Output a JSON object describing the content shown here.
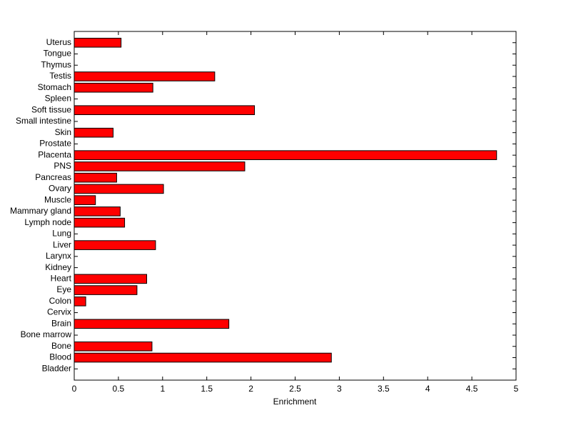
{
  "chart_data": {
    "type": "barh",
    "xlabel": "Enrichment",
    "categories": [
      "Bladder",
      "Blood",
      "Bone",
      "Bone marrow",
      "Brain",
      "Cervix",
      "Colon",
      "Eye",
      "Heart",
      "Kidney",
      "Larynx",
      "Liver",
      "Lung",
      "Lymph node",
      "Mammary gland",
      "Muscle",
      "Ovary",
      "Pancreas",
      "PNS",
      "Placenta",
      "Prostate",
      "Skin",
      "Small intestine",
      "Soft tissue",
      "Spleen",
      "Stomach",
      "Testis",
      "Thymus",
      "Tongue",
      "Uterus"
    ],
    "values": [
      0,
      2.91,
      0.88,
      0,
      1.75,
      0,
      0.13,
      0.71,
      0.82,
      0,
      0,
      0.92,
      0,
      0.57,
      0.52,
      0.24,
      1.01,
      0.48,
      1.93,
      4.78,
      0,
      0.44,
      0,
      2.04,
      0,
      0.89,
      1.59,
      0,
      0,
      0.53
    ],
    "color": "#ff0000",
    "xlim": [
      0,
      5
    ],
    "xticks": [
      0,
      0.5,
      1,
      1.5,
      2,
      2.5,
      3,
      3.5,
      4,
      4.5,
      5
    ]
  }
}
